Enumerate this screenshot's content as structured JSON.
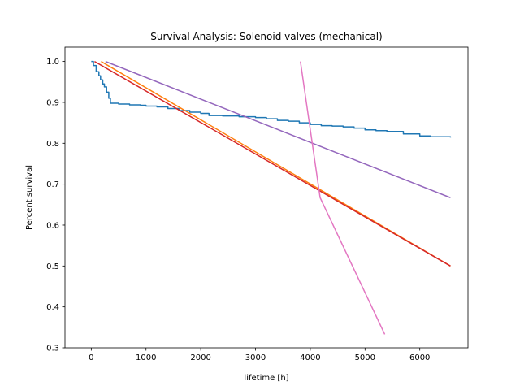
{
  "chart_data": {
    "type": "line",
    "title": "Survival Analysis: Solenoid valves (mechanical)",
    "xlabel": "lifetime [h]",
    "ylabel": "Percent survival",
    "xlim": [
      -480,
      6880
    ],
    "ylim": [
      0.3,
      1.035
    ],
    "xticks": [
      0,
      1000,
      2000,
      3000,
      4000,
      5000,
      6000
    ],
    "yticks": [
      0.3,
      0.4,
      0.5,
      0.6,
      0.7,
      0.8,
      0.9,
      1.0
    ],
    "xtick_labels": [
      "0",
      "1000",
      "2000",
      "3000",
      "4000",
      "5000",
      "6000"
    ],
    "ytick_labels": [
      "0.3",
      "0.4",
      "0.5",
      "0.6",
      "0.7",
      "0.8",
      "0.9",
      "1.0"
    ],
    "grid": false,
    "legend": "none",
    "series": [
      {
        "color": "#1f77b4",
        "step": true,
        "points": [
          [
            0,
            1.0
          ],
          [
            40,
            0.99
          ],
          [
            90,
            0.975
          ],
          [
            140,
            0.965
          ],
          [
            170,
            0.955
          ],
          [
            210,
            0.945
          ],
          [
            240,
            0.938
          ],
          [
            280,
            0.925
          ],
          [
            320,
            0.91
          ],
          [
            350,
            0.898
          ],
          [
            500,
            0.896
          ],
          [
            700,
            0.894
          ],
          [
            900,
            0.893
          ],
          [
            1000,
            0.891
          ],
          [
            1200,
            0.889
          ],
          [
            1400,
            0.885
          ],
          [
            1600,
            0.88
          ],
          [
            1800,
            0.876
          ],
          [
            2000,
            0.873
          ],
          [
            2150,
            0.868
          ],
          [
            2400,
            0.867
          ],
          [
            2700,
            0.865
          ],
          [
            3000,
            0.863
          ],
          [
            3200,
            0.86
          ],
          [
            3400,
            0.856
          ],
          [
            3600,
            0.854
          ],
          [
            3800,
            0.85
          ],
          [
            4000,
            0.846
          ],
          [
            4200,
            0.843
          ],
          [
            4400,
            0.842
          ],
          [
            4600,
            0.84
          ],
          [
            4800,
            0.837
          ],
          [
            5000,
            0.833
          ],
          [
            5200,
            0.831
          ],
          [
            5400,
            0.829
          ],
          [
            5700,
            0.823
          ],
          [
            6000,
            0.818
          ],
          [
            6200,
            0.816
          ],
          [
            6560,
            0.814
          ]
        ]
      },
      {
        "color": "#ff7f0e",
        "points": [
          [
            180,
            1.0
          ],
          [
            6560,
            0.5
          ]
        ]
      },
      {
        "color": "#d62728",
        "points": [
          [
            60,
            1.0
          ],
          [
            6560,
            0.5
          ]
        ]
      },
      {
        "color": "#9467bd",
        "points": [
          [
            260,
            1.0
          ],
          [
            6560,
            0.667
          ]
        ]
      },
      {
        "color": "#e377c2",
        "points": [
          [
            3820,
            1.0
          ],
          [
            4180,
            0.667
          ],
          [
            5360,
            0.333
          ]
        ]
      }
    ]
  }
}
